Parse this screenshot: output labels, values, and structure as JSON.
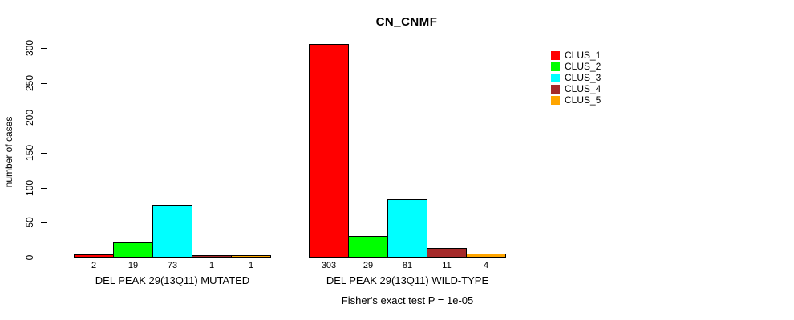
{
  "title": "CN_CNMF",
  "chart_data": {
    "type": "bar",
    "title": "CN_CNMF",
    "ylabel": "number of cases",
    "xlabel": "",
    "yticks": [
      0,
      50,
      100,
      150,
      200,
      250,
      300
    ],
    "ylim": [
      0,
      305
    ],
    "grid": false,
    "legend_position": "right",
    "clusters": [
      {
        "name": "CLUS_1",
        "color": "#FF0000"
      },
      {
        "name": "CLUS_2",
        "color": "#00FF00"
      },
      {
        "name": "CLUS_3",
        "color": "#00FFFF"
      },
      {
        "name": "CLUS_4",
        "color": "#A52A2A"
      },
      {
        "name": "CLUS_5",
        "color": "#FFA500"
      }
    ],
    "groups": [
      {
        "label": "DEL PEAK 29(13Q11) MUTATED",
        "values": [
          2,
          19,
          73,
          1,
          1
        ]
      },
      {
        "label": "DEL PEAK 29(13Q11) WILD-TYPE",
        "values": [
          303,
          29,
          81,
          11,
          4
        ]
      }
    ],
    "footer": "Fisher's exact test P = 1e-05"
  }
}
